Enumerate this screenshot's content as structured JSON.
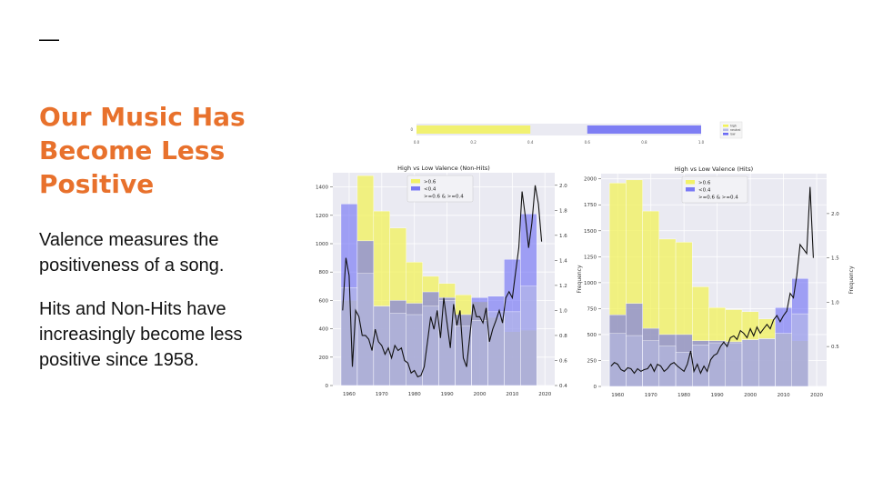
{
  "slide": {
    "dash": "—",
    "title_lines": [
      "Our Music Has",
      "Become Less",
      "Positive"
    ],
    "paragraphs": [
      "Valence measures the positiveness of a song.",
      "Hits and Non-Hits have increasingly become less positive since 1958."
    ]
  },
  "colors": {
    "accent": "#e8712c",
    "high": "#f2f25a",
    "low": "#6b6bf5",
    "neutral": "#b9bde6",
    "plot_bg": "#eaeaf2",
    "line": "#111111"
  },
  "chart_data": [
    {
      "type": "bar",
      "subtype": "valence-scale-strip",
      "x_ticks": [
        "0.0",
        "0.2",
        "0.4",
        "0.6",
        "0.8",
        "1.0"
      ],
      "bands": [
        {
          "name": "high",
          "from": 0.0,
          "to": 0.4
        },
        {
          "name": "low",
          "from": 0.6,
          "to": 1.0
        }
      ],
      "legend": [
        "high",
        "neutral",
        "low"
      ],
      "legend_position": "right"
    },
    {
      "type": "bar",
      "title": "High vs Low Valence (Non-Hits)",
      "categories": [
        "1960",
        "1965",
        "1970",
        "1975",
        "1980",
        "1985",
        "1990",
        "1995",
        "2000",
        "2005",
        "2010",
        "2015"
      ],
      "x_ticks": [
        "1960",
        "1970",
        "1980",
        "1990",
        "2000",
        "2010",
        "2020"
      ],
      "ylim": [
        0,
        1500
      ],
      "y_ticks": [
        "0",
        "200",
        "400",
        "600",
        "800",
        "1000",
        "1200",
        "1400"
      ],
      "y2label": "Frequency",
      "y2lim": [
        0.4,
        2.1
      ],
      "y2_ticks": [
        "0.4",
        "0.6",
        "0.8",
        "1.0",
        "1.2",
        "1.4",
        "1.6",
        "1.8",
        "2.0"
      ],
      "legend": [
        ">0.6",
        "<0.4",
        ">=0.6 & >=0.4"
      ],
      "legend_position": "top-center",
      "series": [
        {
          "name": ">0.6",
          "values": [
            600,
            1480,
            1230,
            1110,
            870,
            770,
            720,
            640,
            590,
            480,
            380,
            390
          ]
        },
        {
          "name": "<0.4",
          "values": [
            1280,
            1020,
            560,
            600,
            580,
            660,
            620,
            500,
            620,
            630,
            890,
            1210
          ]
        },
        {
          "name": ">=0.6 & >=0.4",
          "values": [
            690,
            790,
            560,
            510,
            500,
            560,
            600,
            420,
            460,
            520,
            520,
            700
          ]
        }
      ],
      "frequency_line": {
        "x": [
          1958,
          1959,
          1960,
          1961,
          1962,
          1963,
          1964,
          1965,
          1966,
          1967,
          1968,
          1969,
          1970,
          1971,
          1972,
          1973,
          1974,
          1975,
          1976,
          1977,
          1978,
          1979,
          1980,
          1981,
          1982,
          1983,
          1984,
          1985,
          1986,
          1987,
          1988,
          1989,
          1990,
          1991,
          1992,
          1993,
          1994,
          1995,
          1996,
          1997,
          1998,
          1999,
          2000,
          2001,
          2002,
          2003,
          2004,
          2005,
          2006,
          2007,
          2008,
          2009,
          2010,
          2011,
          2012,
          2013,
          2014,
          2015,
          2016,
          2017,
          2018,
          2019
        ],
        "y": [
          1.0,
          1.42,
          1.28,
          0.55,
          1.0,
          0.95,
          0.8,
          0.8,
          0.77,
          0.68,
          0.85,
          0.75,
          0.72,
          0.65,
          0.7,
          0.62,
          0.72,
          0.68,
          0.7,
          0.6,
          0.58,
          0.5,
          0.52,
          0.47,
          0.48,
          0.55,
          0.75,
          0.95,
          0.85,
          1.0,
          0.78,
          1.1,
          0.9,
          0.7,
          1.05,
          0.88,
          1.0,
          0.62,
          0.55,
          0.8,
          1.05,
          0.95,
          0.95,
          0.9,
          1.02,
          0.75,
          0.85,
          0.92,
          1.0,
          0.9,
          1.1,
          1.15,
          1.1,
          1.3,
          1.5,
          1.95,
          1.75,
          1.5,
          1.7,
          2.0,
          1.85,
          1.55
        ]
      }
    },
    {
      "type": "bar",
      "title": "High vs Low Valence (Hits)",
      "categories": [
        "1960",
        "1965",
        "1970",
        "1975",
        "1980",
        "1985",
        "1990",
        "1995",
        "2000",
        "2005",
        "2010",
        "2015"
      ],
      "x_ticks": [
        "1960",
        "1970",
        "1980",
        "1990",
        "2000",
        "2010",
        "2020"
      ],
      "ylim": [
        0,
        2050
      ],
      "y_ticks": [
        "0",
        "250",
        "500",
        "750",
        "1000",
        "1250",
        "1500",
        "1750",
        "2000"
      ],
      "y2label": "Frequency",
      "y2lim": [
        0.05,
        2.45
      ],
      "y2_ticks": [
        "0.5",
        "1.0",
        "1.5",
        "2.0"
      ],
      "legend": [
        ">0.6",
        "<0.4",
        ">=0.6 & >=0.4"
      ],
      "legend_position": "top-center",
      "series": [
        {
          "name": ">0.6",
          "values": [
            1960,
            1990,
            1690,
            1420,
            1390,
            960,
            760,
            740,
            720,
            650,
            510,
            440
          ]
        },
        {
          "name": "<0.4",
          "values": [
            690,
            800,
            560,
            500,
            500,
            440,
            440,
            430,
            450,
            460,
            760,
            1040
          ]
        },
        {
          "name": ">=0.6 & >=0.4",
          "values": [
            510,
            490,
            440,
            390,
            330,
            400,
            420,
            420,
            450,
            460,
            510,
            700
          ]
        }
      ],
      "frequency_line": {
        "x": [
          1958,
          1959,
          1960,
          1961,
          1962,
          1963,
          1964,
          1965,
          1966,
          1967,
          1968,
          1969,
          1970,
          1971,
          1972,
          1973,
          1974,
          1975,
          1976,
          1977,
          1978,
          1979,
          1980,
          1981,
          1982,
          1983,
          1984,
          1985,
          1986,
          1987,
          1988,
          1989,
          1990,
          1991,
          1992,
          1993,
          1994,
          1995,
          1996,
          1997,
          1998,
          1999,
          2000,
          2001,
          2002,
          2003,
          2004,
          2005,
          2006,
          2007,
          2008,
          2009,
          2010,
          2011,
          2012,
          2013,
          2014,
          2015,
          2016,
          2017,
          2018,
          2019
        ],
        "y": [
          0.28,
          0.32,
          0.3,
          0.24,
          0.22,
          0.26,
          0.25,
          0.2,
          0.25,
          0.22,
          0.24,
          0.25,
          0.3,
          0.22,
          0.3,
          0.28,
          0.22,
          0.25,
          0.3,
          0.32,
          0.28,
          0.25,
          0.22,
          0.3,
          0.45,
          0.22,
          0.3,
          0.2,
          0.28,
          0.22,
          0.35,
          0.4,
          0.42,
          0.5,
          0.55,
          0.5,
          0.6,
          0.62,
          0.58,
          0.68,
          0.65,
          0.6,
          0.7,
          0.62,
          0.72,
          0.65,
          0.7,
          0.75,
          0.7,
          0.8,
          0.85,
          0.78,
          0.85,
          0.9,
          1.1,
          1.05,
          1.3,
          1.65,
          1.6,
          1.55,
          2.3,
          1.5
        ]
      }
    }
  ]
}
